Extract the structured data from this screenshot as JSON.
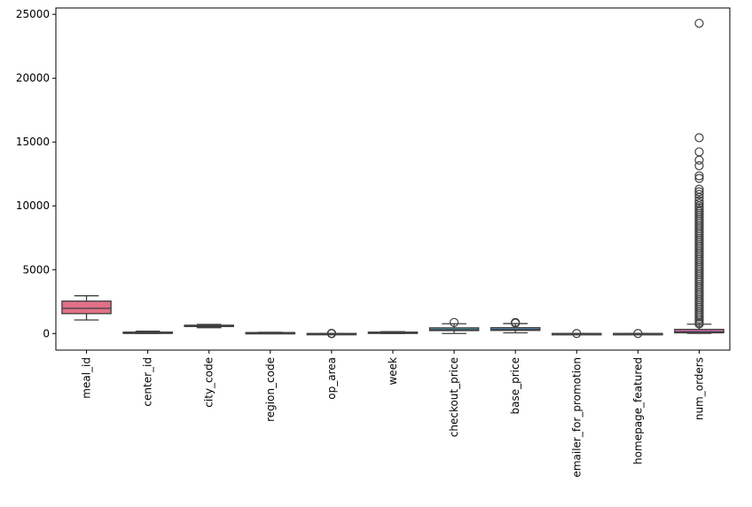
{
  "chart_data": {
    "type": "box",
    "title": "",
    "xlabel": "",
    "ylabel": "",
    "ylim": [
      -1300,
      25500
    ],
    "yticks": [
      0,
      5000,
      10000,
      15000,
      20000,
      25000
    ],
    "ytick_labels": [
      "0",
      "5000",
      "10000",
      "15000",
      "20000",
      "25000"
    ],
    "grid": false,
    "categories": [
      "meal_id",
      "center_id",
      "city_code",
      "region_code",
      "op_area",
      "week",
      "checkout_price",
      "base_price",
      "emailer_for_promotion",
      "homepage_featured",
      "num_orders"
    ],
    "colors": [
      "#e07088",
      "#c98a48",
      "#9a9a48",
      "#58a048",
      "#4aa688",
      "#4aa2a0",
      "#4aa0b8",
      "#5a98d0",
      "#9a8ad8",
      "#c87ad8",
      "#dc6eb8"
    ],
    "boxes": [
      {
        "category": "meal_id",
        "whislo": 1062,
        "q1": 1558,
        "med": 1971,
        "q3": 2539,
        "whishi": 2956,
        "fliers": []
      },
      {
        "category": "center_id",
        "whislo": 10,
        "q1": 43,
        "med": 76,
        "q3": 110,
        "whishi": 186,
        "fliers": []
      },
      {
        "category": "city_code",
        "whislo": 456,
        "q1": 553,
        "med": 596,
        "q3": 651,
        "whishi": 713,
        "fliers": []
      },
      {
        "category": "region_code",
        "whislo": 23,
        "q1": 34,
        "med": 56,
        "q3": 77,
        "whishi": 93,
        "fliers": []
      },
      {
        "category": "op_area",
        "whislo": 2.5,
        "q1": 3.6,
        "med": 4.0,
        "q3": 4.5,
        "whishi": 5.6,
        "fliers": [
          0.9,
          1.4,
          1.9,
          6.3,
          7.0
        ]
      },
      {
        "category": "week",
        "whislo": 1,
        "q1": 39,
        "med": 76,
        "q3": 111,
        "whishi": 145,
        "fliers": []
      },
      {
        "category": "checkout_price",
        "whislo": 2,
        "q1": 229,
        "med": 297,
        "q3": 445,
        "whishi": 767,
        "fliers": [
          866
        ]
      },
      {
        "category": "base_price",
        "whislo": 56,
        "q1": 243,
        "med": 310,
        "q3": 458,
        "whishi": 780,
        "fliers": [
          812,
          850,
          866
        ]
      },
      {
        "category": "emailer_for_promotion",
        "whislo": 0,
        "q1": 0,
        "med": 0,
        "q3": 0,
        "whishi": 0,
        "fliers": [
          1
        ]
      },
      {
        "category": "homepage_featured",
        "whislo": 0,
        "q1": 0,
        "med": 0,
        "q3": 0,
        "whishi": 0,
        "fliers": [
          1
        ]
      },
      {
        "category": "num_orders",
        "whislo": 13,
        "q1": 54,
        "med": 136,
        "q3": 324,
        "whishi": 729,
        "fliers": [
          24299,
          15336,
          14229,
          13580,
          13140,
          12351,
          12150,
          11300,
          11100,
          10900,
          10650,
          10400,
          10200,
          10000,
          9850,
          9700,
          9550,
          9400,
          9250,
          9100,
          8950,
          8800,
          8650,
          8500,
          8350,
          8200,
          8050,
          7900,
          7750,
          7600,
          7450,
          7300,
          7150,
          7000,
          6850,
          6700,
          6550,
          6400,
          6250,
          6100,
          5950,
          5800,
          5650,
          5500,
          5350,
          5200,
          5050,
          4900,
          4750,
          4600,
          4450,
          4300,
          4150,
          4000,
          3850,
          3700,
          3550,
          3400,
          3250,
          3100,
          2950,
          2800,
          2650,
          2500,
          2350,
          2200,
          2050,
          1900,
          1750,
          1600,
          1450,
          1300,
          1150,
          1000,
          850,
          750
        ]
      }
    ]
  }
}
